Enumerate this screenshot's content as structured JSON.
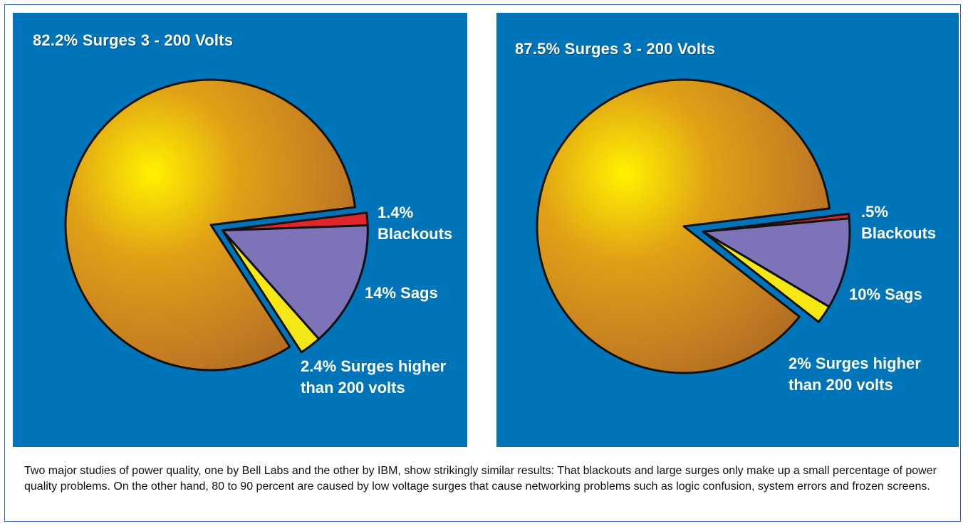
{
  "chart_data": [
    {
      "type": "pie",
      "title": "82.2% Surges 3 - 200 Volts",
      "exploded_slices": [
        "1.4% Blackouts",
        "14% Sags",
        "2.4% Surges higher than 200 volts"
      ],
      "slices": [
        {
          "label": "Surges 3 - 200 Volts",
          "value": 82.2,
          "color": "#c07a1c"
        },
        {
          "label_lines": [
            "1.4%",
            "Blackouts"
          ],
          "value": 1.4,
          "color": "#e0262b"
        },
        {
          "label_lines": [
            "14% Sags"
          ],
          "value": 14,
          "color": "#7c73b8"
        },
        {
          "label_lines": [
            "2.4% Surges higher",
            "than 200 volts"
          ],
          "value": 2.4,
          "color": "#f5e616"
        }
      ]
    },
    {
      "type": "pie",
      "title": "87.5% Surges 3 - 200 Volts",
      "exploded_slices": [
        ".5% Blackouts",
        "10% Sags",
        "2% Surges higher than 200 volts"
      ],
      "slices": [
        {
          "label": "Surges 3 - 200 Volts",
          "value": 87.5,
          "color": "#c07a1c"
        },
        {
          "label_lines": [
            ".5%",
            "Blackouts"
          ],
          "value": 0.5,
          "color": "#e0262b"
        },
        {
          "label_lines": [
            "10% Sags"
          ],
          "value": 10,
          "color": "#7c73b8"
        },
        {
          "label_lines": [
            "2% Surges higher",
            "than 200 volts"
          ],
          "value": 2,
          "color": "#f5e616"
        }
      ]
    }
  ],
  "caption": "Two major studies of power quality, one by Bell Labs and the other by IBM, show strikingly similar results: That blackouts and large surges only make up a small percentage of power quality problems.  On the other hand, 80 to 90 percent are caused by low voltage surges that cause networking problems such as logic confusion, system errors and frozen screens.",
  "colors": {
    "panel_background": "#0074b8",
    "frame_border": "#2f5fbf",
    "outline": "#111111"
  }
}
